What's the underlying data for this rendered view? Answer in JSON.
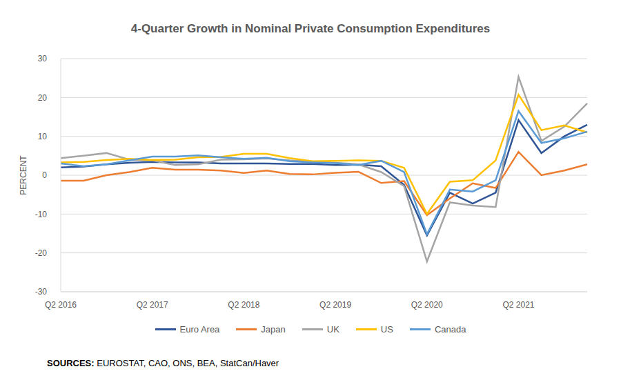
{
  "chart_data": {
    "type": "line",
    "title": "4-Quarter Growth in Nominal Private Consumption Expenditures",
    "y_label": "PERCENT",
    "categories": [
      "Q2 2016",
      null,
      null,
      null,
      "Q2 2017",
      null,
      null,
      null,
      "Q2 2018",
      null,
      null,
      null,
      "Q2 2019",
      null,
      null,
      null,
      "Q2 2020",
      null,
      null,
      null,
      "Q2 2021",
      null,
      null,
      null
    ],
    "series": [
      {
        "name": "Euro Area",
        "color": "#2F5597",
        "values": [
          2.0,
          2.2,
          2.8,
          3.2,
          3.4,
          3.3,
          3.3,
          3.0,
          3.0,
          3.0,
          2.9,
          2.9,
          2.6,
          2.7,
          2.3,
          -2.5,
          -15.5,
          -4.5,
          -7.3,
          -4.5,
          14.2,
          5.7,
          10.0,
          13.0
        ]
      },
      {
        "name": "Japan",
        "color": "#ED7D31",
        "values": [
          -1.4,
          -1.4,
          0.0,
          0.8,
          1.9,
          1.4,
          1.4,
          1.2,
          0.6,
          1.2,
          0.3,
          0.2,
          0.6,
          0.9,
          -2.0,
          -1.5,
          -10.3,
          -6.0,
          -2.1,
          -3.3,
          6.0,
          0.0,
          1.2,
          2.8
        ]
      },
      {
        "name": "UK",
        "color": "#A5A5A5",
        "values": [
          4.4,
          5.0,
          5.7,
          4.0,
          3.8,
          2.6,
          2.8,
          4.0,
          4.1,
          4.3,
          3.8,
          3.5,
          3.2,
          2.8,
          0.8,
          -2.8,
          -22.2,
          -7.0,
          -7.8,
          -8.2,
          25.3,
          8.8,
          12.5,
          18.5
        ]
      },
      {
        "name": "US",
        "color": "#FFC000",
        "values": [
          3.3,
          3.4,
          3.9,
          4.2,
          3.9,
          4.0,
          4.6,
          4.7,
          5.5,
          5.5,
          4.4,
          3.6,
          3.7,
          3.8,
          3.7,
          1.9,
          -10.0,
          -1.7,
          -1.3,
          3.8,
          20.7,
          11.6,
          12.8,
          11.0
        ]
      },
      {
        "name": "Canada",
        "color": "#5B9BD5",
        "values": [
          3.0,
          2.3,
          2.8,
          3.8,
          4.8,
          4.8,
          5.1,
          4.6,
          4.2,
          4.5,
          3.6,
          3.3,
          3.1,
          2.6,
          3.7,
          0.8,
          -15.2,
          -3.7,
          -4.2,
          -1.3,
          16.5,
          8.3,
          9.5,
          11.2
        ]
      }
    ],
    "ylim": [
      -30,
      30
    ],
    "yticks": [
      -30,
      -20,
      -10,
      0,
      10,
      20,
      30
    ],
    "grid": true,
    "legend": "bottom",
    "source_label": "SOURCES:",
    "source": "EUROSTAT, CAO, ONS, BEA, StatCan/Haver"
  }
}
